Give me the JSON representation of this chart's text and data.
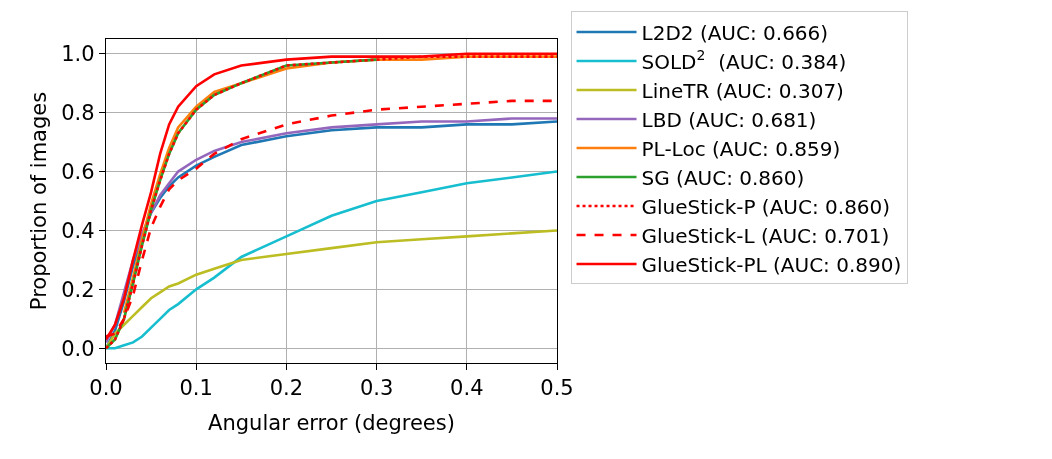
{
  "chart_data": {
    "type": "line",
    "xlabel": "Angular error (degrees)",
    "ylabel": "Proportion of images",
    "x": [
      0,
      0.01,
      0.02,
      0.03,
      0.04,
      0.05,
      0.06,
      0.07,
      0.08,
      0.1,
      0.12,
      0.15,
      0.2,
      0.25,
      0.3,
      0.35,
      0.4,
      0.45,
      0.5
    ],
    "series": [
      {
        "name": "L2D2 (AUC: 0.666)",
        "color": "#1f77b4",
        "line_style": "solid",
        "values": [
          0,
          0.06,
          0.16,
          0.28,
          0.38,
          0.46,
          0.51,
          0.55,
          0.58,
          0.62,
          0.65,
          0.69,
          0.72,
          0.74,
          0.75,
          0.75,
          0.76,
          0.76,
          0.77
        ]
      },
      {
        "name": "SOLD$^{2}$  (AUC: 0.384)",
        "color": "#17becf",
        "line_style": "solid",
        "values": [
          0,
          0,
          0.01,
          0.02,
          0.04,
          0.07,
          0.1,
          0.13,
          0.15,
          0.2,
          0.24,
          0.31,
          0.38,
          0.45,
          0.5,
          0.53,
          0.56,
          0.58,
          0.6
        ]
      },
      {
        "name": "LineTR (AUC: 0.307)",
        "color": "#bcbd22",
        "line_style": "solid",
        "values": [
          0,
          0.05,
          0.08,
          0.11,
          0.14,
          0.17,
          0.19,
          0.21,
          0.22,
          0.25,
          0.27,
          0.3,
          0.32,
          0.34,
          0.36,
          0.37,
          0.38,
          0.39,
          0.4
        ]
      },
      {
        "name": "LBD (AUC: 0.681)",
        "color": "#9467bd",
        "line_style": "solid",
        "values": [
          0.02,
          0.08,
          0.19,
          0.3,
          0.39,
          0.46,
          0.52,
          0.56,
          0.6,
          0.64,
          0.67,
          0.7,
          0.73,
          0.75,
          0.76,
          0.77,
          0.77,
          0.78,
          0.78
        ]
      },
      {
        "name": "PL-Loc (AUC: 0.859)",
        "color": "#ff7f0e",
        "line_style": "solid",
        "values": [
          null,
          null,
          0.12,
          0.24,
          0.37,
          0.49,
          0.59,
          0.68,
          0.75,
          0.82,
          0.87,
          0.9,
          0.95,
          0.97,
          0.98,
          0.98,
          0.99,
          0.99,
          0.99
        ]
      },
      {
        "name": "SG (AUC: 0.860)",
        "color": "#2ca02c",
        "line_style": "solid",
        "values": [
          0,
          0.03,
          0.1,
          0.22,
          0.35,
          0.47,
          0.57,
          0.66,
          0.73,
          0.81,
          0.86,
          0.9,
          0.96,
          0.97,
          0.98,
          null,
          null,
          null,
          null
        ]
      },
      {
        "name": "GlueStick-P (AUC: 0.860)",
        "color": "#ff0000",
        "line_style": "dotted",
        "values": [
          0,
          0.03,
          0.1,
          0.22,
          0.35,
          0.47,
          0.57,
          0.66,
          0.73,
          0.81,
          0.86,
          0.9,
          0.96,
          0.97,
          0.98,
          0.99,
          0.99,
          0.99,
          0.99
        ]
      },
      {
        "name": "GlueStick-L (AUC: 0.701)",
        "color": "#ff0000",
        "line_style": "dashed",
        "values": [
          0.04,
          0.05,
          0.1,
          0.18,
          0.3,
          0.41,
          0.48,
          0.54,
          0.57,
          0.61,
          0.66,
          0.71,
          0.76,
          0.79,
          0.81,
          0.82,
          0.83,
          0.84,
          0.84
        ]
      },
      {
        "name": "GlueStick-PL (AUC: 0.890)",
        "color": "#ff0000",
        "line_style": "solid",
        "values": [
          0.03,
          0.08,
          0.17,
          0.3,
          0.42,
          0.53,
          0.66,
          0.76,
          0.82,
          0.89,
          0.93,
          0.96,
          0.98,
          0.99,
          0.99,
          0.99,
          1.0,
          1.0,
          1.0
        ]
      }
    ],
    "xlim": [
      0,
      0.5
    ],
    "xticks": [
      {
        "value": 0,
        "label": "0.0"
      },
      0.1,
      0.2,
      0.3,
      0.4,
      0.5
    ],
    "ylim": [
      -0.05,
      1.05
    ],
    "yticks": [
      {
        "value": 0,
        "label": "0.0"
      },
      0.2,
      0.4,
      0.6,
      0.8,
      {
        "value": 1,
        "label": "1.0"
      }
    ],
    "grid": true,
    "legend": "right"
  }
}
